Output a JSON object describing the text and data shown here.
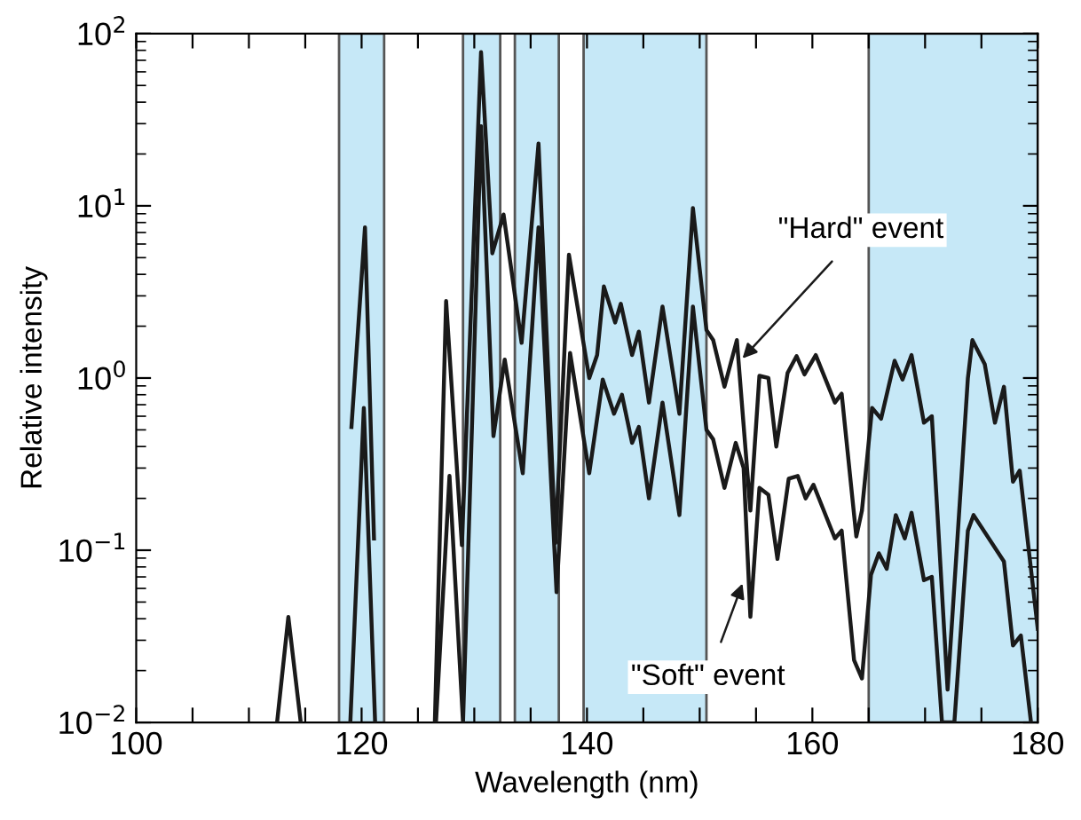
{
  "chart_data": {
    "type": "line",
    "xlabel": "Wavelength (nm)",
    "ylabel": "Relative intensity",
    "log": "y",
    "xlim": [
      100,
      180
    ],
    "ylim": [
      0.01,
      100
    ],
    "xticks": [
      100,
      {
        "value": 105,
        "label": null
      },
      {
        "value": 110,
        "label": null
      },
      {
        "value": 115,
        "label": null
      },
      120,
      {
        "value": 125,
        "label": null
      },
      {
        "value": 130,
        "label": null
      },
      {
        "value": 135,
        "label": null
      },
      140,
      {
        "value": 145,
        "label": null
      },
      {
        "value": 150,
        "label": null
      },
      {
        "value": 155,
        "label": null
      },
      160,
      {
        "value": 165,
        "label": null
      },
      {
        "value": 170,
        "label": null
      },
      {
        "value": 175,
        "label": null
      },
      180
    ],
    "yticks": [
      {
        "value": 0.01,
        "label": "10$^{−2}$"
      },
      {
        "value": 0.1,
        "label": "10$^{−1}$"
      },
      {
        "value": 1,
        "label": "10$^{0}$"
      },
      {
        "value": 10,
        "label": "10$^{1}$"
      },
      {
        "value": 100,
        "label": "10$^{2}$"
      }
    ],
    "grid": false,
    "legend": false,
    "marker": "none",
    "line_style": "solid",
    "bands": [
      {
        "axis": "x",
        "from": 118,
        "to": 122,
        "color": "#c6e8f7"
      },
      {
        "axis": "x",
        "from": 129,
        "to": 132.3,
        "color": "#c6e8f7"
      },
      {
        "axis": "x",
        "from": 133.6,
        "to": 137.5,
        "color": "#c6e8f7"
      },
      {
        "axis": "x",
        "from": 139.7,
        "to": 150.6,
        "color": "#c6e8f7"
      },
      {
        "axis": "x",
        "from": 165,
        "to": 180,
        "color": "#c6e8f7"
      }
    ],
    "series": [
      {
        "color": "#1a1a1a",
        "x": [
          112.5,
          113.5,
          114.6,
          117,
          119.1,
          120.3,
          121.1,
          124,
          126.5,
          127.5,
          128.9,
          130.6,
          131.6,
          132.6,
          134.2,
          135.7,
          137.2,
          138.4,
          140.2,
          140.9,
          141.5,
          142.5,
          143.0,
          144.0,
          144.6,
          145.5,
          146.7,
          148.2,
          149.4,
          150.6,
          151.2,
          152.2,
          153.3,
          154.5,
          155.3,
          156.1,
          156.8,
          157.8,
          158.6,
          159.3,
          160.3,
          162.0,
          162.6,
          163.9,
          164.4,
          165.3,
          166.1,
          167.3,
          168.0,
          168.8,
          169.9,
          170.6,
          172.0,
          173.8,
          174.2,
          175.3,
          176.2,
          177.0,
          177.8,
          178.4,
          180.0
        ],
        "values": [
          0.01,
          0.041,
          0.01,
          null,
          0.52,
          7.5,
          0.117,
          null,
          0.01,
          2.8,
          0.107,
          78,
          5.3,
          8.9,
          1.6,
          23,
          0.11,
          5.2,
          1.0,
          1.36,
          3.4,
          2.1,
          2.7,
          1.36,
          1.86,
          0.72,
          2.6,
          0.62,
          9.7,
          1.9,
          1.66,
          0.89,
          1.66,
          0.17,
          1.03,
          1.0,
          0.4,
          1.07,
          1.34,
          1.05,
          1.36,
          0.72,
          0.81,
          0.12,
          0.17,
          0.67,
          0.58,
          1.26,
          0.98,
          1.36,
          0.55,
          0.6,
          0.0155,
          1.0,
          1.66,
          1.2,
          0.55,
          0.89,
          0.25,
          0.29,
          0.035
        ]
      },
      {
        "color": "#1a1a1a",
        "x": [
          119.0,
          120.2,
          121.2,
          124,
          126.6,
          127.8,
          129.0,
          130.6,
          131.7,
          132.7,
          134.3,
          135.7,
          137.3,
          138.5,
          140.2,
          141.4,
          142.4,
          143.1,
          144.0,
          144.6,
          145.5,
          146.7,
          148.2,
          149.4,
          150.6,
          151.2,
          152.2,
          153.2,
          153.9,
          154.5,
          155.3,
          156.1,
          156.9,
          157.9,
          158.7,
          159.4,
          160.1,
          162.0,
          162.6,
          163.7,
          164.4,
          165.2,
          165.9,
          166.6,
          167.4,
          168.2,
          168.8,
          169.9,
          170.6,
          171.5,
          172.6,
          173.8,
          174.3,
          177.0,
          177.8,
          178.5,
          179.4
        ],
        "values": [
          0.01,
          0.67,
          0.01,
          null,
          0.01,
          0.27,
          0.01,
          29,
          0.46,
          1.28,
          0.28,
          7.5,
          0.057,
          1.4,
          0.28,
          0.98,
          0.62,
          0.8,
          0.42,
          0.52,
          0.2,
          0.72,
          0.16,
          2.6,
          0.5,
          0.44,
          0.23,
          0.42,
          0.3,
          0.041,
          0.23,
          0.21,
          0.089,
          0.26,
          0.27,
          0.2,
          0.24,
          0.117,
          0.13,
          0.023,
          0.018,
          0.072,
          0.096,
          0.078,
          0.16,
          0.117,
          0.165,
          0.067,
          0.07,
          0.01,
          0.01,
          0.13,
          0.16,
          0.086,
          0.028,
          0.032,
          0.01
        ]
      }
    ],
    "annotations": [
      {
        "text": "\"Hard\" event",
        "x": 153.8,
        "y": 1.3
      },
      {
        "text": "\"Soft\" event",
        "x": 153.8,
        "y": 0.064
      }
    ]
  }
}
